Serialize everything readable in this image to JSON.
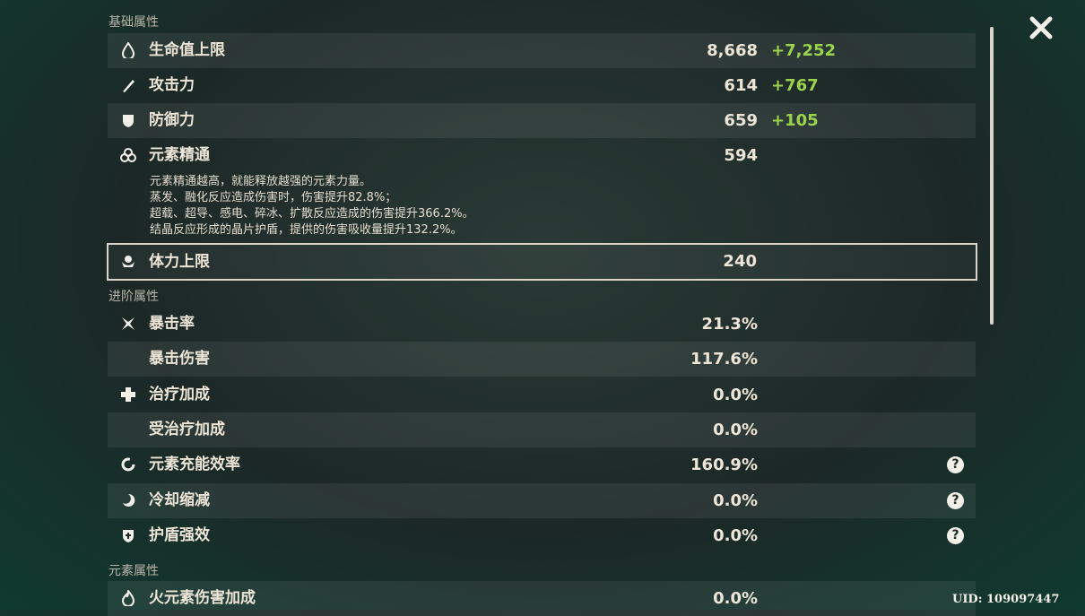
{
  "sections": [
    {
      "title": "基础属性",
      "rows": [
        {
          "label": "生命值上限",
          "value": "8,668",
          "bonus": "+7,252"
        },
        {
          "label": "攻击力",
          "value": "614",
          "bonus": "+767"
        },
        {
          "label": "防御力",
          "value": "659",
          "bonus": "+105"
        },
        {
          "label": "元素精通",
          "value": "594",
          "description": [
            "元素精通越高，就能释放越强的元素力量。",
            "蒸发、融化反应造成伤害时，伤害提升82.8%；",
            "超载、超导、感电、碎冰、扩散反应造成的伤害提升366.2%。",
            "结晶反应形成的晶片护盾，提供的伤害吸收量提升132.2%。"
          ]
        },
        {
          "label": "体力上限",
          "value": "240"
        }
      ]
    },
    {
      "title": "进阶属性",
      "rows": [
        {
          "label": "暴击率",
          "value": "21.3%"
        },
        {
          "label": "暴击伤害",
          "value": "117.6%"
        },
        {
          "label": "治疗加成",
          "value": "0.0%"
        },
        {
          "label": "受治疗加成",
          "value": "0.0%"
        },
        {
          "label": "元素充能效率",
          "value": "160.9%",
          "hint": "?"
        },
        {
          "label": "冷却缩减",
          "value": "0.0%",
          "hint": "?"
        },
        {
          "label": "护盾强效",
          "value": "0.0%",
          "hint": "?"
        }
      ]
    },
    {
      "title": "元素属性",
      "rows": [
        {
          "label": "火元素伤害加成",
          "value": "0.0%"
        }
      ]
    }
  ],
  "uid": "UID: 109097447"
}
